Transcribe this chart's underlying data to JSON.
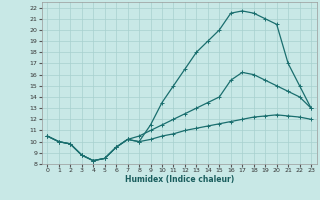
{
  "xlabel": "Humidex (Indice chaleur)",
  "xlim": [
    -0.5,
    23.5
  ],
  "ylim": [
    8,
    22.5
  ],
  "xticks": [
    0,
    1,
    2,
    3,
    4,
    5,
    6,
    7,
    8,
    9,
    10,
    11,
    12,
    13,
    14,
    15,
    16,
    17,
    18,
    19,
    20,
    21,
    22,
    23
  ],
  "yticks": [
    8,
    9,
    10,
    11,
    12,
    13,
    14,
    15,
    16,
    17,
    18,
    19,
    20,
    21,
    22
  ],
  "bg_color": "#c8e8e6",
  "grid_color": "#a8d0ce",
  "line_color": "#1a6e6e",
  "lines": [
    {
      "x": [
        0,
        1,
        2,
        3,
        4,
        5,
        6,
        7,
        8,
        9,
        10,
        11,
        12,
        13,
        14,
        15,
        16,
        17,
        18,
        19,
        20,
        21,
        22,
        23
      ],
      "y": [
        10.5,
        10.0,
        9.8,
        8.8,
        8.3,
        8.5,
        9.5,
        10.2,
        10.0,
        11.5,
        13.5,
        15.0,
        16.5,
        18.0,
        19.0,
        20.0,
        21.5,
        21.7,
        21.5,
        21.0,
        20.5,
        17.0,
        15.0,
        13.0
      ]
    },
    {
      "x": [
        0,
        1,
        2,
        3,
        4,
        5,
        6,
        7,
        8,
        9,
        10,
        11,
        12,
        13,
        14,
        15,
        16,
        17,
        18,
        19,
        20,
        21,
        22,
        23
      ],
      "y": [
        10.5,
        10.0,
        9.8,
        8.8,
        8.3,
        8.5,
        9.5,
        10.2,
        10.5,
        11.0,
        11.5,
        12.0,
        12.5,
        13.0,
        13.5,
        14.0,
        15.5,
        16.2,
        16.0,
        15.5,
        15.0,
        14.5,
        14.0,
        13.0
      ]
    },
    {
      "x": [
        0,
        1,
        2,
        3,
        4,
        5,
        6,
        7,
        8,
        9,
        10,
        11,
        12,
        13,
        14,
        15,
        16,
        17,
        18,
        19,
        20,
        21,
        22,
        23
      ],
      "y": [
        10.5,
        10.0,
        9.8,
        8.8,
        8.3,
        8.5,
        9.5,
        10.2,
        10.0,
        10.2,
        10.5,
        10.7,
        11.0,
        11.2,
        11.4,
        11.6,
        11.8,
        12.0,
        12.2,
        12.3,
        12.4,
        12.3,
        12.2,
        12.0
      ]
    }
  ]
}
